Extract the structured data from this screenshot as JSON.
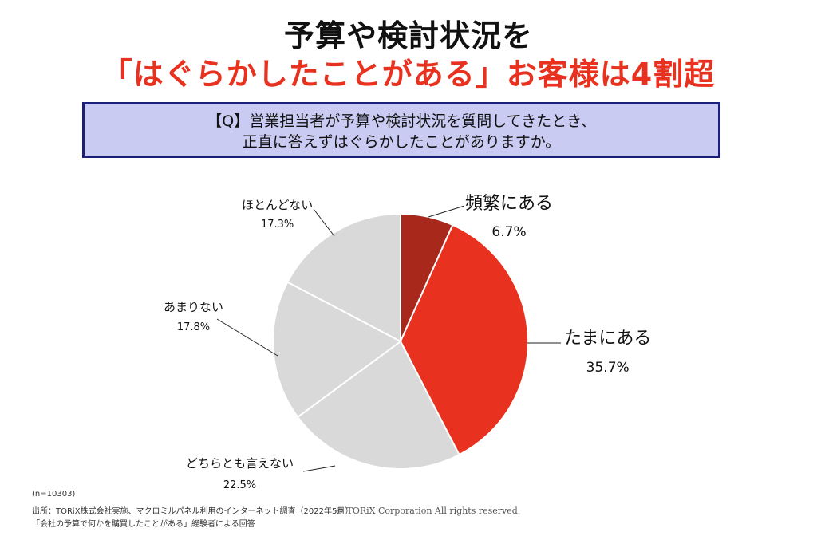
{
  "title": {
    "line1": "予算や検討状況を",
    "line2": "「はぐらかしたことがある」お客様は4割超"
  },
  "question": {
    "line1": "【Q】営業担当者が予算や検討状況を質問してきたとき、",
    "line2": "正直に答えずはぐらかしたことがありますか。"
  },
  "chart_data": {
    "type": "pie",
    "labels": [
      "頻繁にある",
      "たまにある",
      "どちらとも言えない",
      "あまりない",
      "ほとんどない"
    ],
    "values": [
      6.7,
      35.7,
      22.5,
      17.8,
      17.3
    ],
    "value_labels": [
      "6.7%",
      "35.7%",
      "22.5%",
      "17.8%",
      "17.3%"
    ],
    "colors": [
      "#a8281c",
      "#e8321f",
      "#d9d9d9",
      "#d9d9d9",
      "#d9d9d9"
    ]
  },
  "footer": {
    "sample": "(n=10303)",
    "source": "出所：TORiX株式会社実施、マクロミルパネル利用のインターネット調査（2022年5月）",
    "note": "「会社の予算で何かを購買したことがある」経験者による回答",
    "copyright": "© TORiX Corporation All rights reserved."
  }
}
